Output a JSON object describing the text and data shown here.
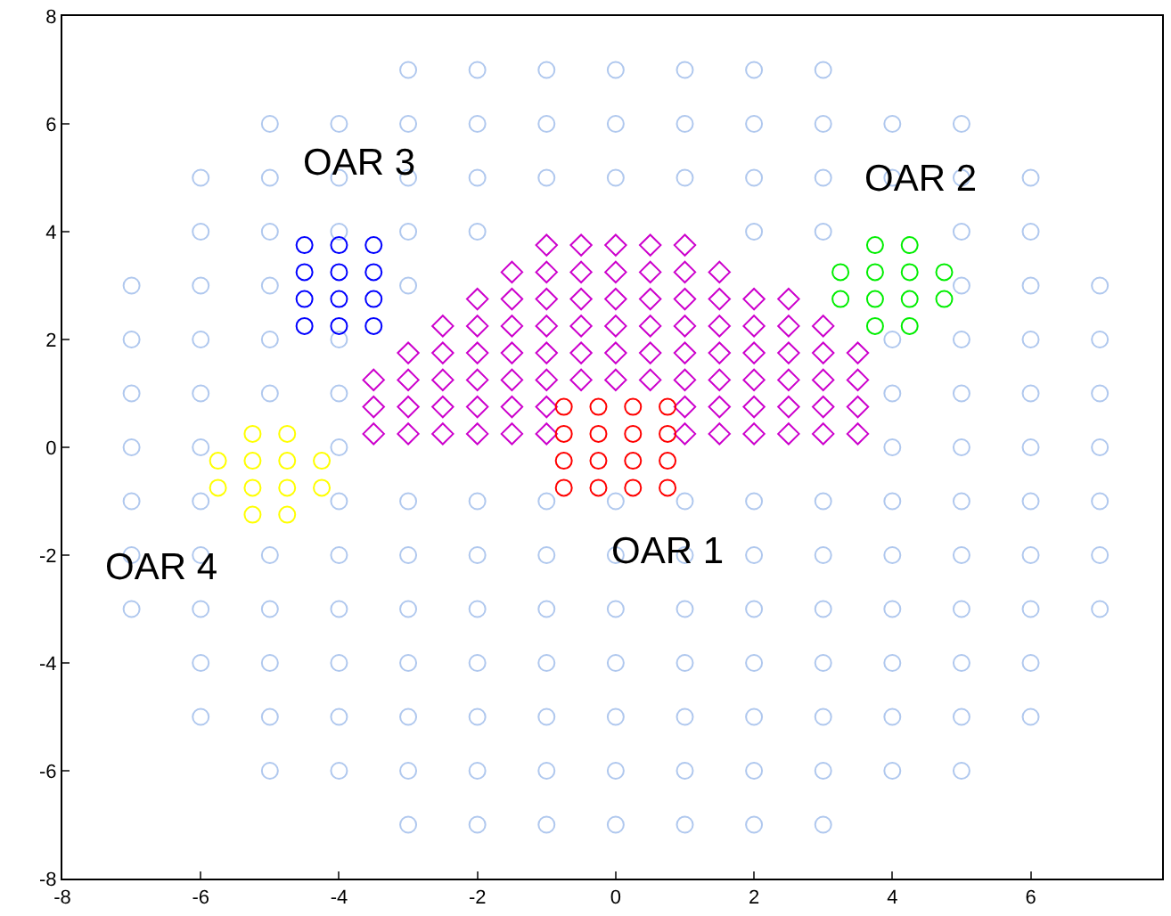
{
  "chart_data": {
    "type": "scatter",
    "xlim": [
      -8,
      7.9
    ],
    "ylim": [
      -8,
      8
    ],
    "xticks": [
      -8,
      -6,
      -4,
      -2,
      0,
      2,
      4,
      6
    ],
    "yticks": [
      -8,
      -6,
      -4,
      -2,
      0,
      2,
      4,
      6,
      8
    ],
    "annotations": [
      "OAR 1",
      "OAR 2",
      "OAR 3",
      "OAR 4"
    ],
    "series": [
      {
        "color": "#b0c8ee",
        "marker": "circle",
        "x": [
          -3,
          -2,
          -1,
          0,
          1,
          2,
          3,
          -5,
          -4,
          -3,
          -2,
          -1,
          0,
          1,
          2,
          3,
          4,
          5,
          -6,
          -5,
          -4,
          -3,
          -2,
          -1,
          0,
          1,
          2,
          3,
          4,
          5,
          6,
          -6,
          -5,
          -4,
          -3,
          -2,
          -1,
          0,
          1,
          2,
          3,
          4,
          5,
          6,
          -7,
          -6,
          -5,
          -4,
          -3,
          -2,
          -1,
          0,
          1,
          2,
          3,
          4,
          5,
          6,
          7,
          -7,
          -6,
          -5,
          -4,
          -3,
          -2,
          -1,
          0,
          1,
          2,
          3,
          4,
          5,
          6,
          7,
          -7,
          -6,
          -4,
          -3,
          -2,
          -1,
          0,
          1,
          2,
          3,
          4,
          5,
          6,
          7,
          -7,
          -6,
          -4,
          4,
          5,
          6,
          7,
          -7,
          -6,
          -5,
          -4,
          4,
          5,
          6,
          7,
          -7,
          -6,
          -5,
          -4,
          4,
          5,
          6,
          7,
          -7,
          -6,
          -5,
          -3,
          5,
          6,
          7,
          -6,
          -5,
          -4,
          -3,
          -2,
          2,
          3,
          5,
          6,
          -6,
          -5,
          -4,
          -3,
          -2,
          -1,
          0,
          1,
          2,
          3,
          4,
          5,
          6,
          -5,
          -4,
          -3,
          -2,
          -1,
          0,
          1,
          2,
          3,
          4,
          5,
          -3,
          -2,
          -1,
          0,
          1,
          2,
          3
        ],
        "values": [
          -7,
          -7,
          -7,
          -7,
          -7,
          -7,
          -7,
          -6,
          -6,
          -6,
          -6,
          -6,
          -6,
          -6,
          -6,
          -6,
          -6,
          -6,
          -5,
          -5,
          -5,
          -5,
          -5,
          -5,
          -5,
          -5,
          -5,
          -5,
          -5,
          -5,
          -5,
          -4,
          -4,
          -4,
          -4,
          -4,
          -4,
          -4,
          -4,
          -4,
          -4,
          -4,
          -4,
          -4,
          -3,
          -3,
          -3,
          -3,
          -3,
          -3,
          -3,
          -3,
          -3,
          -3,
          -3,
          -3,
          -3,
          -3,
          -3,
          -2,
          -2,
          -2,
          -2,
          -2,
          -2,
          -2,
          -2,
          -2,
          -2,
          -2,
          -2,
          -2,
          -2,
          -2,
          -1,
          -1,
          -1,
          -1,
          -1,
          -1,
          -1,
          -1,
          -1,
          -1,
          -1,
          -1,
          -1,
          -1,
          0,
          0,
          0,
          0,
          0,
          0,
          0,
          1,
          1,
          1,
          1,
          1,
          1,
          1,
          1,
          2,
          2,
          2,
          2,
          2,
          2,
          2,
          2,
          3,
          3,
          3,
          3,
          3,
          3,
          3,
          4,
          4,
          4,
          4,
          4,
          4,
          4,
          4,
          4,
          5,
          5,
          5,
          5,
          5,
          5,
          5,
          5,
          5,
          5,
          5,
          5,
          5,
          6,
          6,
          6,
          6,
          6,
          6,
          6,
          6,
          6,
          6,
          6,
          7,
          7,
          7,
          7,
          7,
          7,
          7
        ]
      },
      {
        "color": "#cc00cc",
        "marker": "diamond",
        "x": [
          -1,
          -0.5,
          0,
          0.5,
          1,
          -1.5,
          -1,
          -0.5,
          0,
          0.5,
          1,
          1.5,
          -2,
          -1.5,
          -1,
          -0.5,
          0,
          0.5,
          1,
          1.5,
          2,
          2.5,
          -2.5,
          -2,
          -1.5,
          -1,
          -0.5,
          0,
          0.5,
          1,
          1.5,
          2,
          2.5,
          3,
          -3,
          -2.5,
          -2,
          -1.5,
          -1,
          -0.5,
          0,
          0.5,
          1,
          1.5,
          2,
          2.5,
          3,
          3.5,
          -3.5,
          -3,
          -2.5,
          -2,
          -1.5,
          -1,
          -0.5,
          0,
          0.5,
          1,
          1.5,
          2,
          2.5,
          3,
          3.5,
          -3.5,
          -3,
          -2.5,
          -2,
          -1.5,
          -1,
          1,
          1.5,
          2,
          2.5,
          3,
          3.5,
          -3.5,
          -3,
          -2.5,
          -2,
          -1.5,
          -1,
          1,
          1.5,
          2,
          2.5,
          3,
          3.5
        ],
        "values": [
          3.75,
          3.75,
          3.75,
          3.75,
          3.75,
          3.25,
          3.25,
          3.25,
          3.25,
          3.25,
          3.25,
          3.25,
          2.75,
          2.75,
          2.75,
          2.75,
          2.75,
          2.75,
          2.75,
          2.75,
          2.75,
          2.75,
          2.25,
          2.25,
          2.25,
          2.25,
          2.25,
          2.25,
          2.25,
          2.25,
          2.25,
          2.25,
          2.25,
          2.25,
          1.75,
          1.75,
          1.75,
          1.75,
          1.75,
          1.75,
          1.75,
          1.75,
          1.75,
          1.75,
          1.75,
          1.75,
          1.75,
          1.75,
          1.25,
          1.25,
          1.25,
          1.25,
          1.25,
          1.25,
          1.25,
          1.25,
          1.25,
          1.25,
          1.25,
          1.25,
          1.25,
          1.25,
          1.25,
          0.75,
          0.75,
          0.75,
          0.75,
          0.75,
          0.75,
          0.75,
          0.75,
          0.75,
          0.75,
          0.75,
          0.75,
          0.25,
          0.25,
          0.25,
          0.25,
          0.25,
          0.25,
          0.25,
          0.25,
          0.25,
          0.25,
          0.25,
          0.25
        ]
      },
      {
        "color": "#ff0000",
        "marker": "circle",
        "x": [
          -0.75,
          -0.25,
          0.25,
          0.75,
          -0.75,
          -0.25,
          0.25,
          0.75,
          -0.75,
          -0.25,
          0.25,
          0.75,
          -0.75,
          -0.25,
          0.25,
          0.75
        ],
        "values": [
          -0.75,
          -0.75,
          -0.75,
          -0.75,
          -0.25,
          -0.25,
          -0.25,
          -0.25,
          0.25,
          0.25,
          0.25,
          0.25,
          0.75,
          0.75,
          0.75,
          0.75
        ]
      },
      {
        "color": "#00ee00",
        "marker": "circle",
        "x": [
          3.75,
          4.25,
          3.25,
          3.75,
          4.25,
          4.75,
          3.25,
          3.75,
          4.25,
          4.75,
          3.75,
          4.25
        ],
        "values": [
          2.25,
          2.25,
          2.75,
          2.75,
          2.75,
          2.75,
          3.25,
          3.25,
          3.25,
          3.25,
          3.75,
          3.75
        ]
      },
      {
        "color": "#0000ff",
        "marker": "circle",
        "x": [
          -4.5,
          -4,
          -3.5,
          -4.5,
          -4,
          -3.5,
          -4.5,
          -4,
          -3.5,
          -4.5,
          -4,
          -3.5
        ],
        "values": [
          2.25,
          2.25,
          2.25,
          2.75,
          2.75,
          2.75,
          3.25,
          3.25,
          3.25,
          3.75,
          3.75,
          3.75
        ]
      },
      {
        "color": "#ffff00",
        "marker": "circle",
        "x": [
          -5.25,
          -4.75,
          -5.75,
          -5.25,
          -4.75,
          -4.25,
          -5.75,
          -5.25,
          -4.75,
          -4.25,
          -5.25,
          -4.75
        ],
        "values": [
          -1.25,
          -1.25,
          -0.75,
          -0.75,
          -0.75,
          -0.75,
          -0.25,
          -0.25,
          -0.25,
          -0.25,
          0.25,
          0.25
        ]
      }
    ]
  }
}
